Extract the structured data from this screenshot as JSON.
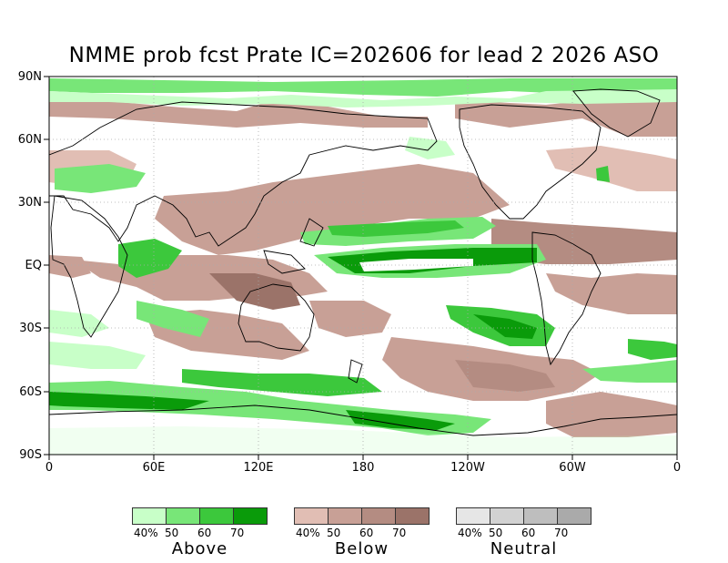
{
  "title": "NMME prob fcst Prate IC=202606 for lead 2 2026 ASO",
  "axes": {
    "lat_labels": [
      "90N",
      "60N",
      "30N",
      "EQ",
      "30S",
      "60S",
      "90S"
    ],
    "lon_labels": [
      "0",
      "60E",
      "120E",
      "180",
      "120W",
      "60W",
      "0"
    ]
  },
  "legends": [
    {
      "name": "Above",
      "ticks": [
        "40%",
        "50",
        "60",
        "70"
      ],
      "colors": [
        "#c8ffc8",
        "#78e678",
        "#3cc83c",
        "#0a9b0a"
      ]
    },
    {
      "name": "Below",
      "ticks": [
        "40%",
        "50",
        "60",
        "70"
      ],
      "colors": [
        "#e1beb4",
        "#c8a096",
        "#b48c82",
        "#9b7369"
      ]
    },
    {
      "name": "Neutral",
      "ticks": [
        "40%",
        "50",
        "60",
        "70"
      ],
      "colors": [
        "#e6e6e6",
        "#d2d2d2",
        "#bebebe",
        "#aaaaaa"
      ]
    }
  ]
}
